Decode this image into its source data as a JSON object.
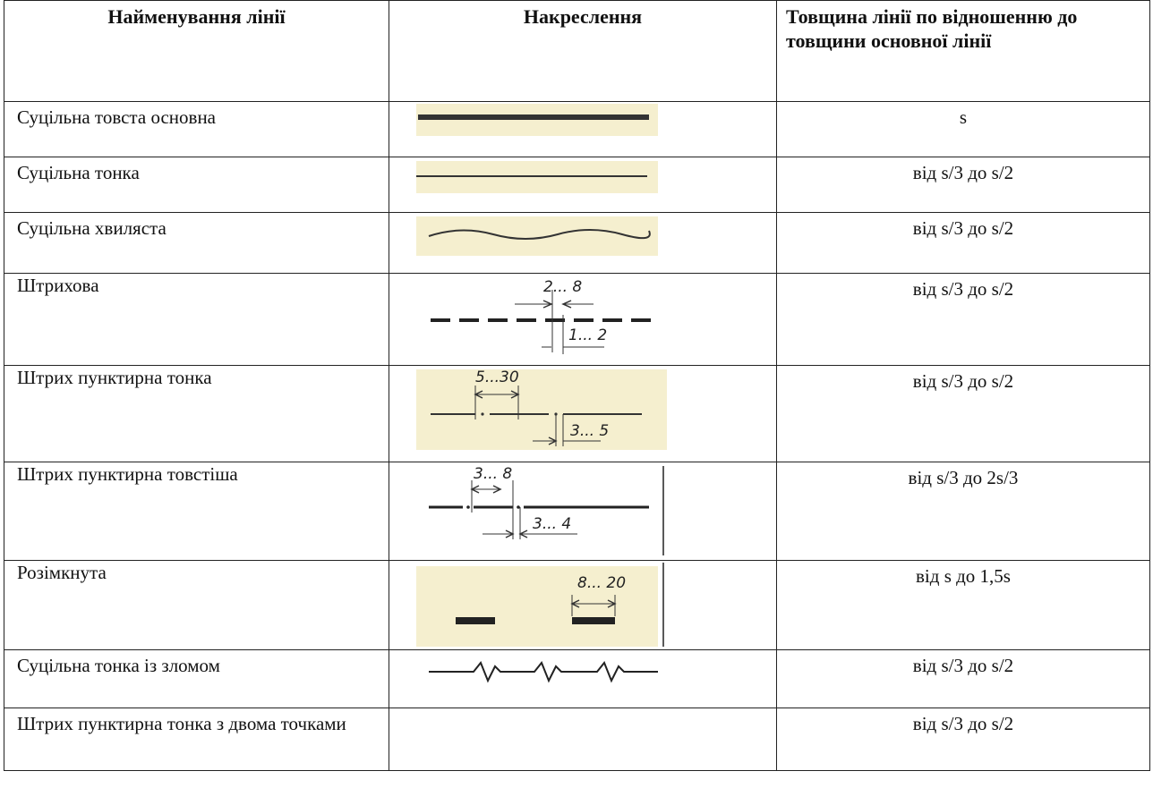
{
  "headers": {
    "name": "Найменування лінії",
    "drawing": "Накреслення",
    "thickness": "Товщина лінії по відношенню до товщини основної лінії"
  },
  "rows": [
    {
      "name": "Суцільна товста основна",
      "thickness": "s",
      "drawing": "solid-thick-line"
    },
    {
      "name": "Суцільна тонка",
      "thickness": "від s/3 до s/2",
      "drawing": "solid-thin-line"
    },
    {
      "name": "Суцільна хвиляста",
      "thickness": "від s/3 до s/2",
      "drawing": "wavy-line"
    },
    {
      "name": "Штрихова",
      "thickness": "від s/3 до s/2",
      "drawing": "dashed-line",
      "dims": [
        "2... 8",
        "1... 2"
      ]
    },
    {
      "name": "Штрих пунктирна тонка",
      "thickness": "від s/3 до s/2",
      "drawing": "dash-dot-thin-line",
      "dims": [
        "5...30",
        "3... 5"
      ]
    },
    {
      "name": "Штрих пунктирна товстіша",
      "thickness": "від s/3 до 2s/3",
      "drawing": "dash-dot-thick-line",
      "dims": [
        "3... 8",
        "3... 4"
      ]
    },
    {
      "name": "Розімкнута",
      "thickness": "від  s до 1,5s",
      "drawing": "open-line",
      "dims": [
        "8... 20"
      ]
    },
    {
      "name": "Суцільна тонка із зломом",
      "thickness": "від s/3 до s/2",
      "drawing": "zigzag-line"
    },
    {
      "name": "Штрих пунктирна тонка з двома точками",
      "thickness": "від s/3 до s/2",
      "drawing": "empty"
    }
  ]
}
